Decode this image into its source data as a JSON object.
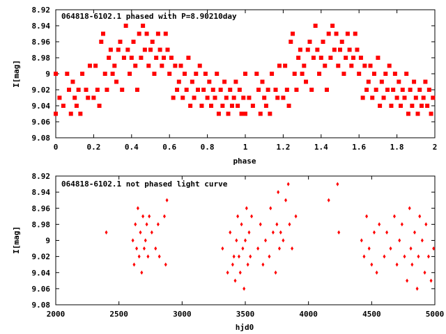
{
  "chart_data": [
    {
      "type": "scatter",
      "title": "064818-6102.1 phased with P=8.90210day",
      "xlabel": "phase",
      "ylabel": "I[mag]",
      "xlim": [
        0,
        2
      ],
      "ylim": [
        9.08,
        8.92
      ],
      "y_inverted": true,
      "xticks": [
        "0",
        "0.2",
        "0.4",
        "0.6",
        "0.8",
        "1",
        "1.2",
        "1.4",
        "1.6",
        "1.8",
        "2"
      ],
      "yticks": [
        "8.92",
        "8.94",
        "8.96",
        "8.98",
        "9",
        "9.02",
        "9.04",
        "9.06",
        "9.08"
      ],
      "color": "#ff0000",
      "marker": "square",
      "phase_points_repeated_plus_one": true,
      "points": [
        [
          0.0,
          9.0
        ],
        [
          0.0,
          9.05
        ],
        [
          0.02,
          9.03
        ],
        [
          0.04,
          9.04
        ],
        [
          0.06,
          9.0
        ],
        [
          0.07,
          9.02
        ],
        [
          0.08,
          9.05
        ],
        [
          0.09,
          9.01
        ],
        [
          0.1,
          9.03
        ],
        [
          0.11,
          9.04
        ],
        [
          0.12,
          9.02
        ],
        [
          0.13,
          9.05
        ],
        [
          0.14,
          9.0
        ],
        [
          0.16,
          9.02
        ],
        [
          0.17,
          9.03
        ],
        [
          0.18,
          8.99
        ],
        [
          0.2,
          9.03
        ],
        [
          0.21,
          8.99
        ],
        [
          0.22,
          9.02
        ],
        [
          0.23,
          9.04
        ],
        [
          0.24,
          8.96
        ],
        [
          0.25,
          8.95
        ],
        [
          0.26,
          9.0
        ],
        [
          0.27,
          9.02
        ],
        [
          0.28,
          8.98
        ],
        [
          0.29,
          8.97
        ],
        [
          0.3,
          9.0
        ],
        [
          0.31,
          8.99
        ],
        [
          0.32,
          9.01
        ],
        [
          0.33,
          8.97
        ],
        [
          0.34,
          8.96
        ],
        [
          0.35,
          9.02
        ],
        [
          0.36,
          8.98
        ],
        [
          0.37,
          8.94
        ],
        [
          0.38,
          8.97
        ],
        [
          0.39,
          9.0
        ],
        [
          0.4,
          8.98
        ],
        [
          0.41,
          8.96
        ],
        [
          0.42,
          8.99
        ],
        [
          0.43,
          9.02
        ],
        [
          0.44,
          8.95
        ],
        [
          0.45,
          8.98
        ],
        [
          0.46,
          8.94
        ],
        [
          0.47,
          8.97
        ],
        [
          0.48,
          8.95
        ],
        [
          0.49,
          8.99
        ],
        [
          0.5,
          8.97
        ],
        [
          0.51,
          8.96
        ],
        [
          0.52,
          9.0
        ],
        [
          0.53,
          8.98
        ],
        [
          0.54,
          8.95
        ],
        [
          0.55,
          8.97
        ],
        [
          0.56,
          8.99
        ],
        [
          0.57,
          8.98
        ],
        [
          0.58,
          8.95
        ],
        [
          0.59,
          8.97
        ],
        [
          0.6,
          9.0
        ],
        [
          0.61,
          8.98
        ],
        [
          0.62,
          9.03
        ],
        [
          0.63,
          8.99
        ],
        [
          0.64,
          9.02
        ],
        [
          0.65,
          9.01
        ],
        [
          0.66,
          8.99
        ],
        [
          0.67,
          9.03
        ],
        [
          0.68,
          9.0
        ],
        [
          0.69,
          9.02
        ],
        [
          0.7,
          8.98
        ],
        [
          0.71,
          9.04
        ],
        [
          0.72,
          9.01
        ],
        [
          0.73,
          9.03
        ],
        [
          0.74,
          9.0
        ],
        [
          0.75,
          9.02
        ],
        [
          0.76,
          8.99
        ],
        [
          0.77,
          9.04
        ],
        [
          0.78,
          9.02
        ],
        [
          0.79,
          9.0
        ],
        [
          0.8,
          9.03
        ],
        [
          0.81,
          9.01
        ],
        [
          0.82,
          9.04
        ],
        [
          0.83,
          9.02
        ],
        [
          0.84,
          9.03
        ],
        [
          0.85,
          9.0
        ],
        [
          0.86,
          9.05
        ],
        [
          0.87,
          9.02
        ],
        [
          0.88,
          9.04
        ],
        [
          0.89,
          9.01
        ],
        [
          0.9,
          9.03
        ],
        [
          0.91,
          9.05
        ],
        [
          0.92,
          9.02
        ],
        [
          0.93,
          9.04
        ],
        [
          0.94,
          9.03
        ],
        [
          0.95,
          9.01
        ],
        [
          0.96,
          9.04
        ],
        [
          0.97,
          9.02
        ],
        [
          0.98,
          9.05
        ],
        [
          0.99,
          9.03
        ]
      ]
    },
    {
      "type": "scatter",
      "title": "064818-6102.1 not phased light curve",
      "xlabel": "hjd0",
      "ylabel": "I[mag]",
      "xlim": [
        2000,
        5000
      ],
      "ylim": [
        9.08,
        8.92
      ],
      "y_inverted": true,
      "xticks": [
        "2000",
        "2500",
        "3000",
        "3500",
        "4000",
        "4500",
        "5000"
      ],
      "yticks": [
        "8.92",
        "8.94",
        "8.96",
        "8.98",
        "9",
        "9.02",
        "9.04",
        "9.06",
        "9.08"
      ],
      "color": "#ff0000",
      "marker": "diamond",
      "points": [
        [
          2400,
          8.99
        ],
        [
          2610,
          9.0
        ],
        [
          2620,
          9.03
        ],
        [
          2630,
          8.98
        ],
        [
          2640,
          9.01
        ],
        [
          2650,
          8.96
        ],
        [
          2660,
          9.02
        ],
        [
          2670,
          8.99
        ],
        [
          2680,
          9.04
        ],
        [
          2690,
          8.97
        ],
        [
          2700,
          9.01
        ],
        [
          2710,
          9.0
        ],
        [
          2720,
          8.98
        ],
        [
          2730,
          9.02
        ],
        [
          2740,
          8.97
        ],
        [
          2760,
          8.99
        ],
        [
          2790,
          9.01
        ],
        [
          2810,
          8.98
        ],
        [
          2820,
          9.02
        ],
        [
          2860,
          8.97
        ],
        [
          2870,
          9.03
        ],
        [
          2880,
          8.95
        ],
        [
          3320,
          9.01
        ],
        [
          3360,
          9.04
        ],
        [
          3380,
          8.99
        ],
        [
          3400,
          9.03
        ],
        [
          3410,
          9.02
        ],
        [
          3420,
          9.05
        ],
        [
          3430,
          9.0
        ],
        [
          3440,
          8.97
        ],
        [
          3450,
          9.02
        ],
        [
          3460,
          9.04
        ],
        [
          3470,
          8.98
        ],
        [
          3480,
          9.01
        ],
        [
          3490,
          9.06
        ],
        [
          3500,
          9.0
        ],
        [
          3510,
          8.96
        ],
        [
          3520,
          9.03
        ],
        [
          3530,
          8.99
        ],
        [
          3540,
          9.02
        ],
        [
          3550,
          8.97
        ],
        [
          3600,
          9.01
        ],
        [
          3620,
          8.98
        ],
        [
          3640,
          9.03
        ],
        [
          3660,
          9.0
        ],
        [
          3690,
          9.02
        ],
        [
          3700,
          8.96
        ],
        [
          3720,
          8.99
        ],
        [
          3740,
          9.04
        ],
        [
          3750,
          8.98
        ],
        [
          3760,
          8.94
        ],
        [
          3770,
          9.01
        ],
        [
          3780,
          8.99
        ],
        [
          3800,
          9.0
        ],
        [
          3820,
          8.95
        ],
        [
          3840,
          8.93
        ],
        [
          3850,
          8.98
        ],
        [
          3870,
          9.01
        ],
        [
          3900,
          8.97
        ],
        [
          4160,
          8.95
        ],
        [
          4230,
          8.93
        ],
        [
          4240,
          8.99
        ],
        [
          4420,
          9.0
        ],
        [
          4440,
          9.02
        ],
        [
          4460,
          8.97
        ],
        [
          4480,
          9.01
        ],
        [
          4500,
          9.03
        ],
        [
          4520,
          8.99
        ],
        [
          4540,
          9.04
        ],
        [
          4560,
          8.98
        ],
        [
          4600,
          9.02
        ],
        [
          4620,
          8.99
        ],
        [
          4650,
          9.01
        ],
        [
          4680,
          8.97
        ],
        [
          4700,
          9.03
        ],
        [
          4720,
          9.0
        ],
        [
          4740,
          8.98
        ],
        [
          4760,
          9.02
        ],
        [
          4780,
          9.05
        ],
        [
          4800,
          8.96
        ],
        [
          4810,
          9.01
        ],
        [
          4820,
          9.03
        ],
        [
          4840,
          8.99
        ],
        [
          4860,
          9.06
        ],
        [
          4870,
          9.02
        ],
        [
          4880,
          8.97
        ],
        [
          4900,
          9.0
        ],
        [
          4920,
          9.04
        ],
        [
          4930,
          8.98
        ],
        [
          4950,
          9.02
        ],
        [
          4970,
          9.05
        ],
        [
          4990,
          9.01
        ]
      ]
    }
  ]
}
